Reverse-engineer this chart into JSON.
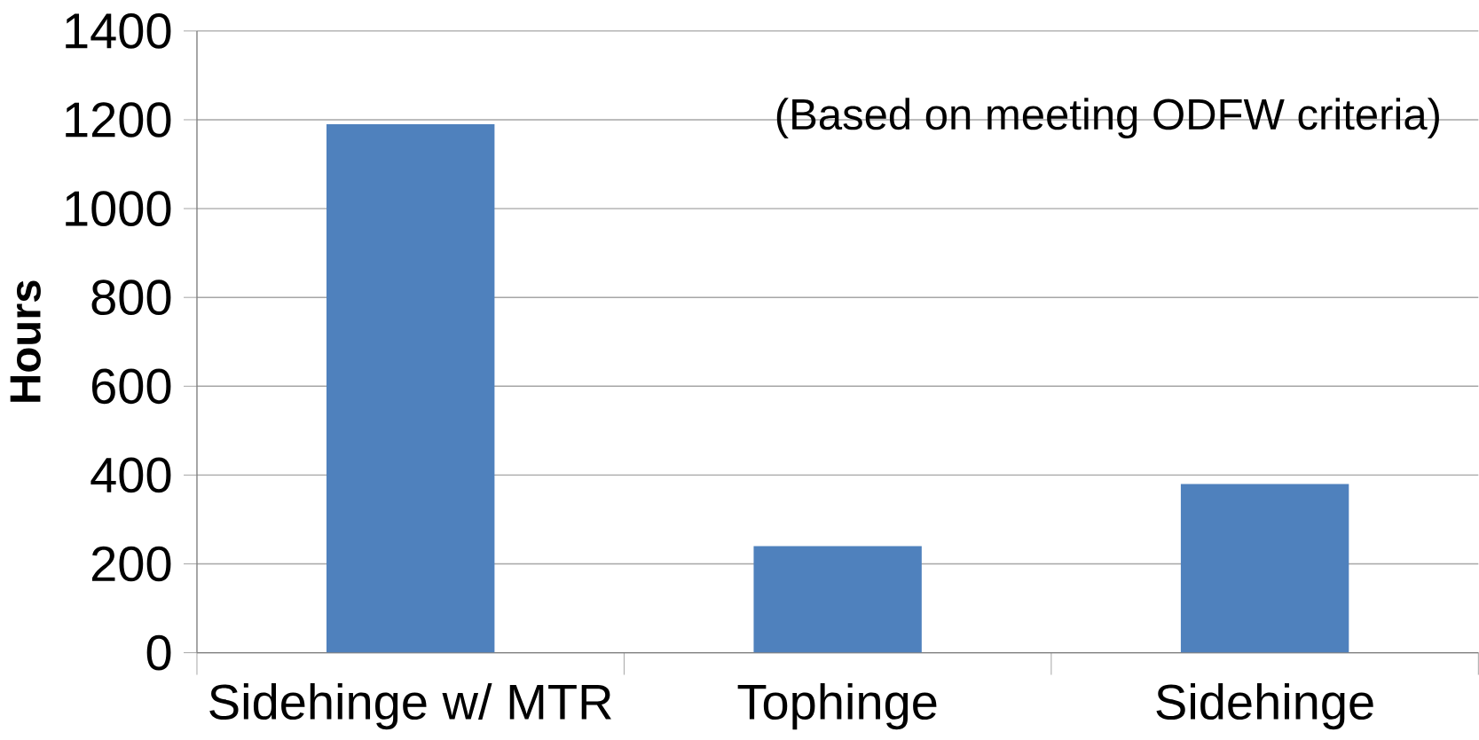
{
  "chart_data": {
    "type": "bar",
    "ylabel": "**Hours**",
    "categories": [
      "Sidehinge w/ MTR",
      "Tophinge",
      "Sidehinge"
    ],
    "values": [
      1190,
      240,
      380
    ],
    "color": "#4f81bd",
    "ylim": [
      0,
      1400
    ],
    "yticks": [
      0,
      200,
      400,
      600,
      800,
      1000,
      1200,
      1400
    ],
    "grid": "y",
    "annotations": [
      "(Based on meeting ODFW criteria)"
    ]
  }
}
